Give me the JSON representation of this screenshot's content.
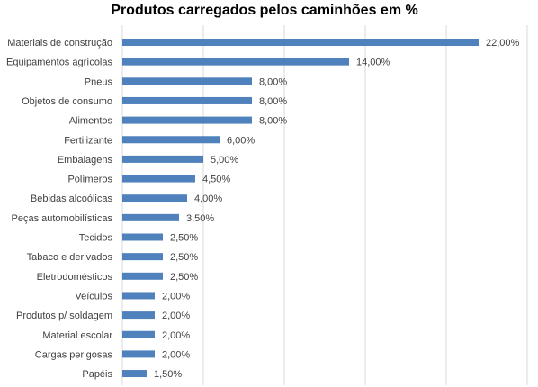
{
  "chart_data": {
    "type": "bar",
    "orientation": "horizontal",
    "title": "Produtos carregados pelos caminhões em %",
    "xlabel": "",
    "ylabel": "",
    "categories": [
      "Materiais de construção",
      "Equipamentos agrícolas",
      "Pneus",
      "Objetos de consumo",
      "Alimentos",
      "Fertilizante",
      "Embalagens",
      "Polímeros",
      "Bebidas alcoólicas",
      "Peças automobilísticas",
      "Tecidos",
      "Tabaco e derivados",
      "Eletrodomésticos",
      "Veículos",
      "Produtos p/ soldagem",
      "Material escolar",
      "Cargas perigosas",
      "Papéis"
    ],
    "values": [
      22,
      14,
      8,
      8,
      8,
      6,
      5,
      4.5,
      4,
      3.5,
      2.5,
      2.5,
      2.5,
      2,
      2,
      2,
      2,
      1.5
    ],
    "value_labels": [
      "22,00%",
      "14,00%",
      "8,00%",
      "8,00%",
      "8,00%",
      "6,00%",
      "5,00%",
      "4,50%",
      "4,00%",
      "3,50%",
      "2,50%",
      "2,50%",
      "2,50%",
      "2,00%",
      "2,00%",
      "2,00%",
      "2,00%",
      "1,50%"
    ],
    "xlim": [
      0,
      25
    ],
    "vertical_grid": true,
    "grid_step": 5,
    "legend": "none",
    "bar_color": "#4f81bd"
  }
}
